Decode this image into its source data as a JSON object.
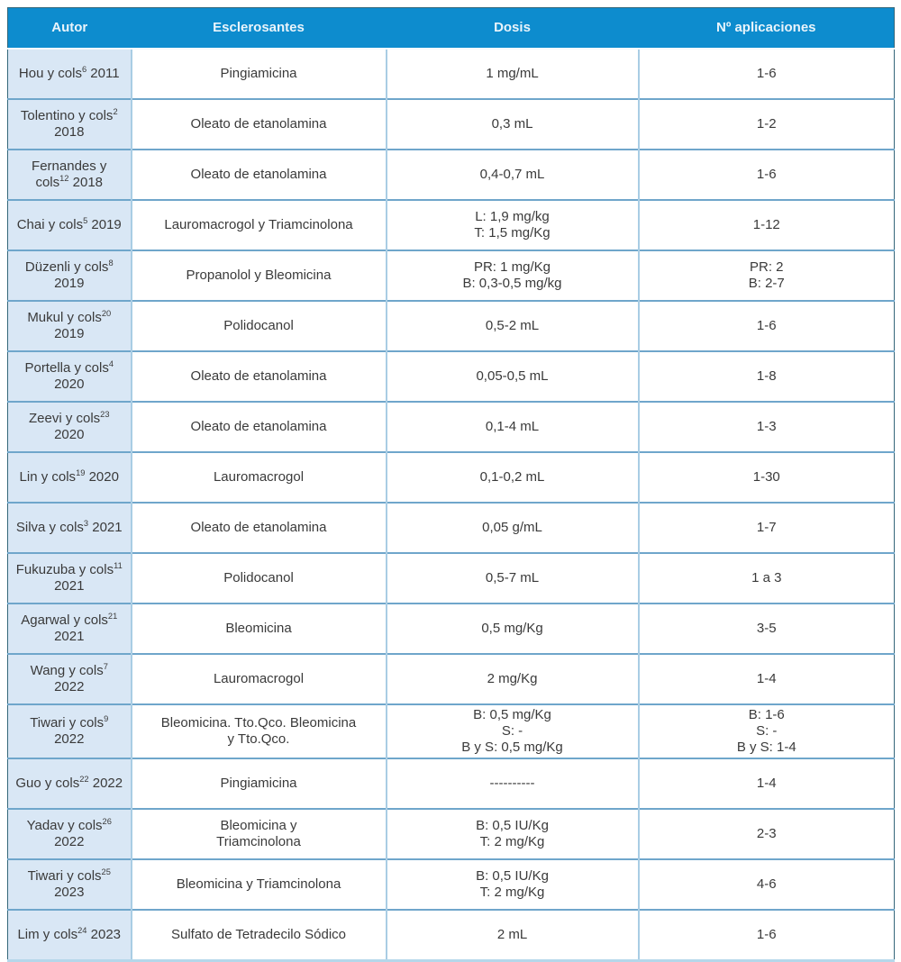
{
  "colors": {
    "header_bg": "#0d8cce",
    "header_text": "#e9f4fb",
    "author_col_bg": "#d9e7f5",
    "row_border": "#6fa6cb",
    "col_border": "#a9cde4",
    "outer_border": "#35677a",
    "bottom_border": "#b5d7ea",
    "text": "#3a3a3a"
  },
  "table": {
    "headers": [
      "Autor",
      "Esclerosantes",
      "Dosis",
      "Nº aplicaciones"
    ],
    "rows": [
      {
        "author": {
          "name": "Hou y cols",
          "ref": "6",
          "year": "2011"
        },
        "sclerosant": "Pingiamicina",
        "dose": "1 mg/mL",
        "applications": "1-6"
      },
      {
        "author": {
          "name": "Tolentino y cols",
          "ref": "2",
          "year": "2018"
        },
        "sclerosant": "Oleato de etanolamina",
        "dose": "0,3 mL",
        "applications": "1-2"
      },
      {
        "author": {
          "name": "Fernandes y cols",
          "ref": "12",
          "year": "2018"
        },
        "sclerosant": "Oleato de etanolamina",
        "dose": "0,4-0,7 mL",
        "applications": "1-6"
      },
      {
        "author": {
          "name": "Chai y cols",
          "ref": "5",
          "year": "2019"
        },
        "sclerosant": "Lauromacrogol y Triamcinolona",
        "dose": "L: 1,9 mg/kg\nT: 1,5 mg/Kg",
        "applications": "1-12"
      },
      {
        "author": {
          "name": "Düzenli y cols",
          "ref": "8",
          "year": "2019"
        },
        "sclerosant": "Propanolol y Bleomicina",
        "dose": "PR: 1 mg/Kg\nB: 0,3-0,5 mg/kg",
        "applications": "PR: 2\nB: 2-7"
      },
      {
        "author": {
          "name": "Mukul y cols",
          "ref": "20",
          "year": "2019"
        },
        "sclerosant": "Polidocanol",
        "dose": "0,5-2 mL",
        "applications": "1-6"
      },
      {
        "author": {
          "name": "Portella y cols",
          "ref": "4",
          "year": "2020"
        },
        "sclerosant": "Oleato de etanolamina",
        "dose": "0,05-0,5 mL",
        "applications": "1-8"
      },
      {
        "author": {
          "name": "Zeevi y cols",
          "ref": "23",
          "year": "2020"
        },
        "sclerosant": "Oleato de etanolamina",
        "dose": "0,1-4 mL",
        "applications": "1-3"
      },
      {
        "author": {
          "name": "Lin y cols",
          "ref": "19",
          "year": "2020"
        },
        "sclerosant": "Lauromacrogol",
        "dose": "0,1-0,2 mL",
        "applications": "1-30"
      },
      {
        "author": {
          "name": "Silva y cols",
          "ref": "3",
          "year": "2021"
        },
        "sclerosant": "Oleato de etanolamina",
        "dose": "0,05 g/mL",
        "applications": "1-7"
      },
      {
        "author": {
          "name": "Fukuzuba y cols",
          "ref": "11",
          "year": "2021"
        },
        "sclerosant": "Polidocanol",
        "dose": "0,5-7 mL",
        "applications": "1 a 3"
      },
      {
        "author": {
          "name": "Agarwal y cols",
          "ref": "21",
          "year": "2021"
        },
        "sclerosant": "Bleomicina",
        "dose": "0,5 mg/Kg",
        "applications": "3-5"
      },
      {
        "author": {
          "name": "Wang y cols",
          "ref": "7",
          "year": "2022"
        },
        "sclerosant": "Lauromacrogol",
        "dose": "2 mg/Kg",
        "applications": "1-4"
      },
      {
        "author": {
          "name": "Tiwari y cols",
          "ref": "9",
          "year": "2022"
        },
        "sclerosant": "Bleomicina. Tto.Qco. Bleomicina\ny Tto.Qco.",
        "dose": "B: 0,5 mg/Kg\nS: -\nB y S: 0,5 mg/Kg",
        "applications": "B: 1-6\nS: -\nB y S: 1-4"
      },
      {
        "author": {
          "name": "Guo y cols",
          "ref": "22",
          "year": "2022"
        },
        "sclerosant": "Pingiamicina",
        "dose": "----------",
        "applications": "1-4"
      },
      {
        "author": {
          "name": "Yadav y cols",
          "ref": "26",
          "year": "2022"
        },
        "sclerosant": "Bleomicina y\nTriamcinolona",
        "dose": "B: 0,5 IU/Kg\nT: 2 mg/Kg",
        "applications": "2-3"
      },
      {
        "author": {
          "name": "Tiwari y cols",
          "ref": "25",
          "year": "2023"
        },
        "sclerosant": "Bleomicina y Triamcinolona",
        "dose": "B: 0,5 IU/Kg\nT: 2 mg/Kg",
        "applications": "4-6"
      },
      {
        "author": {
          "name": "Lim y cols",
          "ref": "24",
          "year": "2023"
        },
        "sclerosant": "Sulfato de Tetradecilo Sódico",
        "dose": "2 mL",
        "applications": "1-6"
      }
    ]
  }
}
